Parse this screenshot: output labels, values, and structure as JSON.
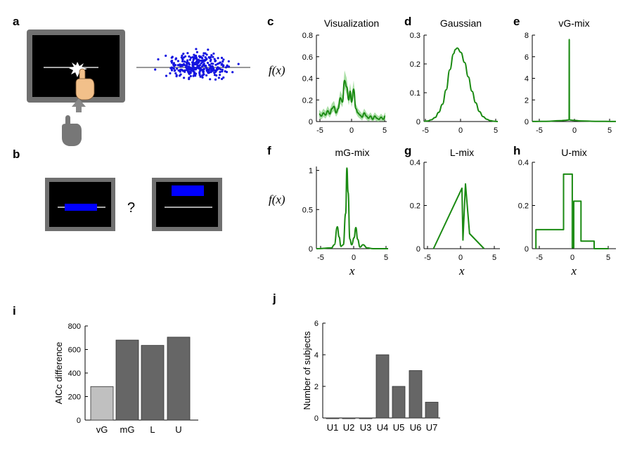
{
  "panel_labels": {
    "a": "a",
    "b": "b",
    "c": "c",
    "d": "d",
    "e": "e",
    "f": "f",
    "g": "g",
    "h": "h",
    "i": "i",
    "j": "j"
  },
  "question_mark": "?",
  "fx_label": "f(x)",
  "x_label": "x",
  "colors": {
    "line": "#1a8a12",
    "band": "#8fd48a",
    "scatter": "#1414e0",
    "bar_dark": "#666666",
    "bar_light": "#c0c0c0",
    "blue": "#0000ff"
  },
  "chart_data": [
    {
      "id": "c",
      "type": "line",
      "title": "Visualization",
      "xlim": [
        -5,
        5
      ],
      "ylim": [
        0,
        0.8
      ],
      "xticks": [
        "-5",
        "0",
        "5"
      ],
      "yticks": [
        "0",
        "0.2",
        "0.4",
        "0.6",
        "0.8"
      ],
      "ylabel": "f(x)",
      "shaded_band": true,
      "x": [
        -4.6,
        -4.3,
        -4,
        -3.7,
        -3.4,
        -3.1,
        -2.8,
        -2.5,
        -2.2,
        -1.9,
        -1.6,
        -1.3,
        -1,
        -0.7,
        -0.4,
        -0.2,
        0,
        0.3,
        0.6,
        0.9,
        1.2,
        1.5,
        1.8,
        2.1,
        2.4,
        2.7,
        3,
        3.3,
        3.6,
        3.9,
        4.2,
        4.5,
        4.8
      ],
      "y": [
        0.07,
        0.05,
        0.08,
        0.06,
        0.1,
        0.07,
        0.12,
        0.14,
        0.08,
        0.12,
        0.22,
        0.18,
        0.38,
        0.32,
        0.2,
        0.28,
        0.18,
        0.3,
        0.12,
        0.08,
        0.06,
        0.04,
        0.08,
        0.05,
        0.03,
        0.05,
        0.02,
        0.05,
        0.03,
        0.02,
        0.04,
        0.02,
        0.05
      ]
    },
    {
      "id": "d",
      "type": "line",
      "title": "Gaussian",
      "xlim": [
        -5,
        5
      ],
      "ylim": [
        0,
        0.3
      ],
      "xticks": [
        "-5",
        "0",
        "5"
      ],
      "yticks": [
        "0",
        "0.1",
        "0.2",
        "0.3"
      ],
      "x": [
        -5,
        -4.5,
        -4,
        -3.5,
        -3,
        -2.5,
        -2,
        -1.5,
        -1,
        -0.75,
        -0.5,
        0,
        0.5,
        1,
        1.5,
        2,
        2.5,
        3,
        3.5,
        4,
        4.5,
        5
      ],
      "y": [
        0.001,
        0.002,
        0.006,
        0.014,
        0.032,
        0.06,
        0.11,
        0.18,
        0.235,
        0.25,
        0.255,
        0.24,
        0.205,
        0.155,
        0.105,
        0.065,
        0.035,
        0.017,
        0.008,
        0.003,
        0.001,
        0.0
      ]
    },
    {
      "id": "e",
      "type": "line",
      "title": "vG-mix",
      "xlim": [
        -6,
        6
      ],
      "ylim": [
        0,
        8
      ],
      "xticks": [
        "-5",
        "0",
        "5"
      ],
      "yticks": [
        "0",
        "2",
        "4",
        "6",
        "8"
      ],
      "x": [
        -6,
        -4,
        -2,
        -1.2,
        -0.8,
        -0.72,
        -0.7,
        -0.68,
        -0.6,
        -0.2,
        1,
        3,
        6
      ],
      "y": [
        0.005,
        0.02,
        0.08,
        0.12,
        0.15,
        0.2,
        7.6,
        0.2,
        0.15,
        0.12,
        0.06,
        0.02,
        0.005
      ]
    },
    {
      "id": "f",
      "type": "line",
      "title": "mG-mix",
      "xlim": [
        -6,
        6
      ],
      "ylim": [
        0,
        1.05
      ],
      "xticks": [
        "-5",
        "0",
        "5"
      ],
      "yticks": [
        "0",
        "0.5",
        "1"
      ],
      "ylabel": "f(x)",
      "xlabel": "x",
      "x": [
        -6,
        -3.5,
        -3,
        -2.5,
        -2.2,
        -1.9,
        -1.5,
        -1.1,
        -0.9,
        -0.7,
        -0.4,
        -0.1,
        0.3,
        0.6,
        0.9,
        1.3,
        1.8,
        2.5,
        3.5,
        6
      ],
      "y": [
        0,
        0.01,
        0.05,
        0.28,
        0.15,
        0.03,
        0.05,
        0.45,
        1.03,
        0.72,
        0.12,
        0.05,
        0.14,
        0.27,
        0.12,
        0.02,
        0.05,
        0.01,
        0,
        0
      ]
    },
    {
      "id": "g",
      "type": "line",
      "title": "L-mix",
      "xlim": [
        -6,
        6
      ],
      "ylim": [
        0,
        0.4
      ],
      "xticks": [
        "-5",
        "0",
        "5"
      ],
      "yticks": [
        "0",
        "0.2",
        "0.4"
      ],
      "xlabel": "x",
      "x": [
        -4.5,
        0,
        0.15,
        0.55,
        1.2,
        3.5
      ],
      "y": [
        0,
        0.28,
        0.04,
        0.3,
        0.07,
        0
      ]
    },
    {
      "id": "h",
      "type": "line",
      "title": "U-mix",
      "xlim": [
        -5.5,
        6
      ],
      "ylim": [
        0,
        0.4
      ],
      "xticks": [
        "-5",
        "0",
        "5"
      ],
      "yticks": [
        "0",
        "0.2",
        "0.4"
      ],
      "xlabel": "x",
      "steps": true,
      "x": [
        -5,
        -5,
        -1.2,
        -1.2,
        0,
        0,
        0.2,
        0.2,
        1.2,
        1.2,
        3,
        3,
        5
      ],
      "y": [
        0,
        0.088,
        0.088,
        0.345,
        0.345,
        0.005,
        0.005,
        0.22,
        0.22,
        0.035,
        0.035,
        0,
        0
      ]
    },
    {
      "id": "i",
      "type": "bar",
      "ylabel": "AICc difference",
      "ylim": [
        0,
        800
      ],
      "yticks": [
        "0",
        "200",
        "400",
        "600",
        "800"
      ],
      "categories": [
        "vG",
        "mG",
        "L",
        "U"
      ],
      "values": [
        285,
        680,
        635,
        705
      ]
    },
    {
      "id": "j",
      "type": "bar",
      "ylabel": "Number of subjects",
      "ylim": [
        0,
        6
      ],
      "yticks": [
        "0",
        "2",
        "4",
        "6"
      ],
      "categories": [
        "U1",
        "U2",
        "U3",
        "U4",
        "U5",
        "U6",
        "U7"
      ],
      "values": [
        0,
        0,
        0,
        4,
        2,
        3,
        1
      ]
    }
  ]
}
